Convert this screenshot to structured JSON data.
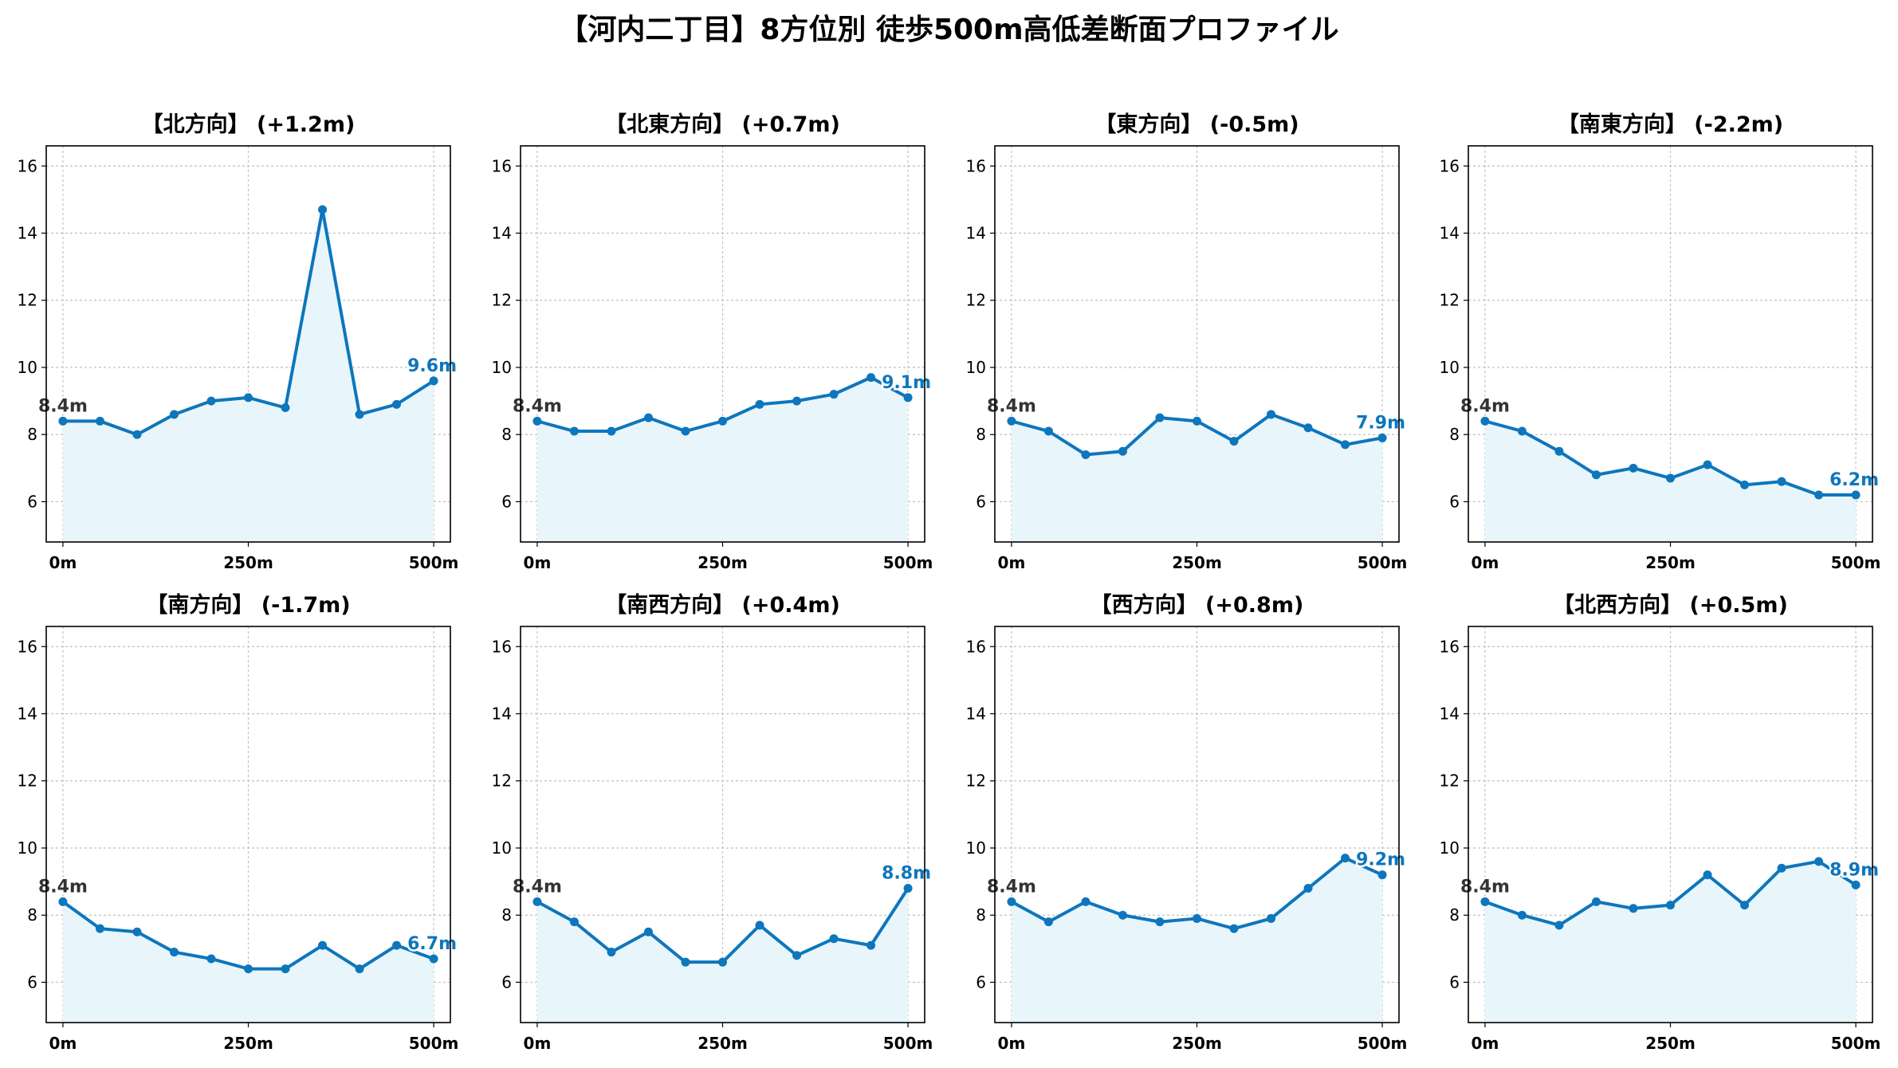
{
  "figure": {
    "title": "【河内二丁目】8方位別 徒歩500m高低差断面プロファイル"
  },
  "style": {
    "line_color": "#0e76bc",
    "fill_color": "#e8f6fb",
    "start_label_color": "#333333",
    "end_label_color": "#0e76bc",
    "grid_color": "#c0c0c0"
  },
  "chart_data": [
    {
      "type": "area",
      "title": "【北方向】 (+1.2m)",
      "x": [
        0,
        50,
        100,
        150,
        200,
        250,
        300,
        350,
        400,
        450,
        500
      ],
      "values": [
        8.4,
        8.4,
        8.0,
        8.6,
        9.0,
        9.1,
        8.8,
        14.7,
        8.6,
        8.9,
        9.6
      ],
      "start_label": "8.4m",
      "end_label": "9.6m",
      "xticks": [
        "0m",
        "250m",
        "500m"
      ],
      "yticks": [
        "6",
        "8",
        "10",
        "12",
        "14",
        "16"
      ],
      "xlim": [
        0,
        500
      ],
      "ylim": [
        4.8,
        16.6
      ],
      "grid": true
    },
    {
      "type": "area",
      "title": "【北東方向】 (+0.7m)",
      "x": [
        0,
        50,
        100,
        150,
        200,
        250,
        300,
        350,
        400,
        450,
        500
      ],
      "values": [
        8.4,
        8.1,
        8.1,
        8.5,
        8.1,
        8.4,
        8.9,
        9.0,
        9.2,
        9.7,
        9.1
      ],
      "start_label": "8.4m",
      "end_label": "9.1m",
      "xticks": [
        "0m",
        "250m",
        "500m"
      ],
      "yticks": [
        "6",
        "8",
        "10",
        "12",
        "14",
        "16"
      ],
      "xlim": [
        0,
        500
      ],
      "ylim": [
        4.8,
        16.6
      ],
      "grid": true
    },
    {
      "type": "area",
      "title": "【東方向】 (-0.5m)",
      "x": [
        0,
        50,
        100,
        150,
        200,
        250,
        300,
        350,
        400,
        450,
        500
      ],
      "values": [
        8.4,
        8.1,
        7.4,
        7.5,
        8.5,
        8.4,
        7.8,
        8.6,
        8.2,
        7.7,
        7.9
      ],
      "start_label": "8.4m",
      "end_label": "7.9m",
      "xticks": [
        "0m",
        "250m",
        "500m"
      ],
      "yticks": [
        "6",
        "8",
        "10",
        "12",
        "14",
        "16"
      ],
      "xlim": [
        0,
        500
      ],
      "ylim": [
        4.8,
        16.6
      ],
      "grid": true
    },
    {
      "type": "area",
      "title": "【南東方向】 (-2.2m)",
      "x": [
        0,
        50,
        100,
        150,
        200,
        250,
        300,
        350,
        400,
        450,
        500
      ],
      "values": [
        8.4,
        8.1,
        7.5,
        6.8,
        7.0,
        6.7,
        7.1,
        6.5,
        6.6,
        6.2,
        6.2
      ],
      "start_label": "8.4m",
      "end_label": "6.2m",
      "xticks": [
        "0m",
        "250m",
        "500m"
      ],
      "yticks": [
        "6",
        "8",
        "10",
        "12",
        "14",
        "16"
      ],
      "xlim": [
        0,
        500
      ],
      "ylim": [
        4.8,
        16.6
      ],
      "grid": true
    },
    {
      "type": "area",
      "title": "【南方向】 (-1.7m)",
      "x": [
        0,
        50,
        100,
        150,
        200,
        250,
        300,
        350,
        400,
        450,
        500
      ],
      "values": [
        8.4,
        7.6,
        7.5,
        6.9,
        6.7,
        6.4,
        6.4,
        7.1,
        6.4,
        7.1,
        6.7
      ],
      "start_label": "8.4m",
      "end_label": "6.7m",
      "xticks": [
        "0m",
        "250m",
        "500m"
      ],
      "yticks": [
        "6",
        "8",
        "10",
        "12",
        "14",
        "16"
      ],
      "xlim": [
        0,
        500
      ],
      "ylim": [
        4.8,
        16.6
      ],
      "grid": true
    },
    {
      "type": "area",
      "title": "【南西方向】 (+0.4m)",
      "x": [
        0,
        50,
        100,
        150,
        200,
        250,
        300,
        350,
        400,
        450,
        500
      ],
      "values": [
        8.4,
        7.8,
        6.9,
        7.5,
        6.6,
        6.6,
        7.7,
        6.8,
        7.3,
        7.1,
        8.8
      ],
      "start_label": "8.4m",
      "end_label": "8.8m",
      "xticks": [
        "0m",
        "250m",
        "500m"
      ],
      "yticks": [
        "6",
        "8",
        "10",
        "12",
        "14",
        "16"
      ],
      "xlim": [
        0,
        500
      ],
      "ylim": [
        4.8,
        16.6
      ],
      "grid": true
    },
    {
      "type": "area",
      "title": "【西方向】 (+0.8m)",
      "x": [
        0,
        50,
        100,
        150,
        200,
        250,
        300,
        350,
        400,
        450,
        500
      ],
      "values": [
        8.4,
        7.8,
        8.4,
        8.0,
        7.8,
        7.9,
        7.6,
        7.9,
        8.8,
        9.7,
        9.2
      ],
      "start_label": "8.4m",
      "end_label": "9.2m",
      "xticks": [
        "0m",
        "250m",
        "500m"
      ],
      "yticks": [
        "6",
        "8",
        "10",
        "12",
        "14",
        "16"
      ],
      "xlim": [
        0,
        500
      ],
      "ylim": [
        4.8,
        16.6
      ],
      "grid": true
    },
    {
      "type": "area",
      "title": "【北西方向】 (+0.5m)",
      "x": [
        0,
        50,
        100,
        150,
        200,
        250,
        300,
        350,
        400,
        450,
        500
      ],
      "values": [
        8.4,
        8.0,
        7.7,
        8.4,
        8.2,
        8.3,
        9.2,
        8.3,
        9.4,
        9.6,
        8.9
      ],
      "start_label": "8.4m",
      "end_label": "8.9m",
      "xticks": [
        "0m",
        "250m",
        "500m"
      ],
      "yticks": [
        "6",
        "8",
        "10",
        "12",
        "14",
        "16"
      ],
      "xlim": [
        0,
        500
      ],
      "ylim": [
        4.8,
        16.6
      ],
      "grid": true
    }
  ]
}
